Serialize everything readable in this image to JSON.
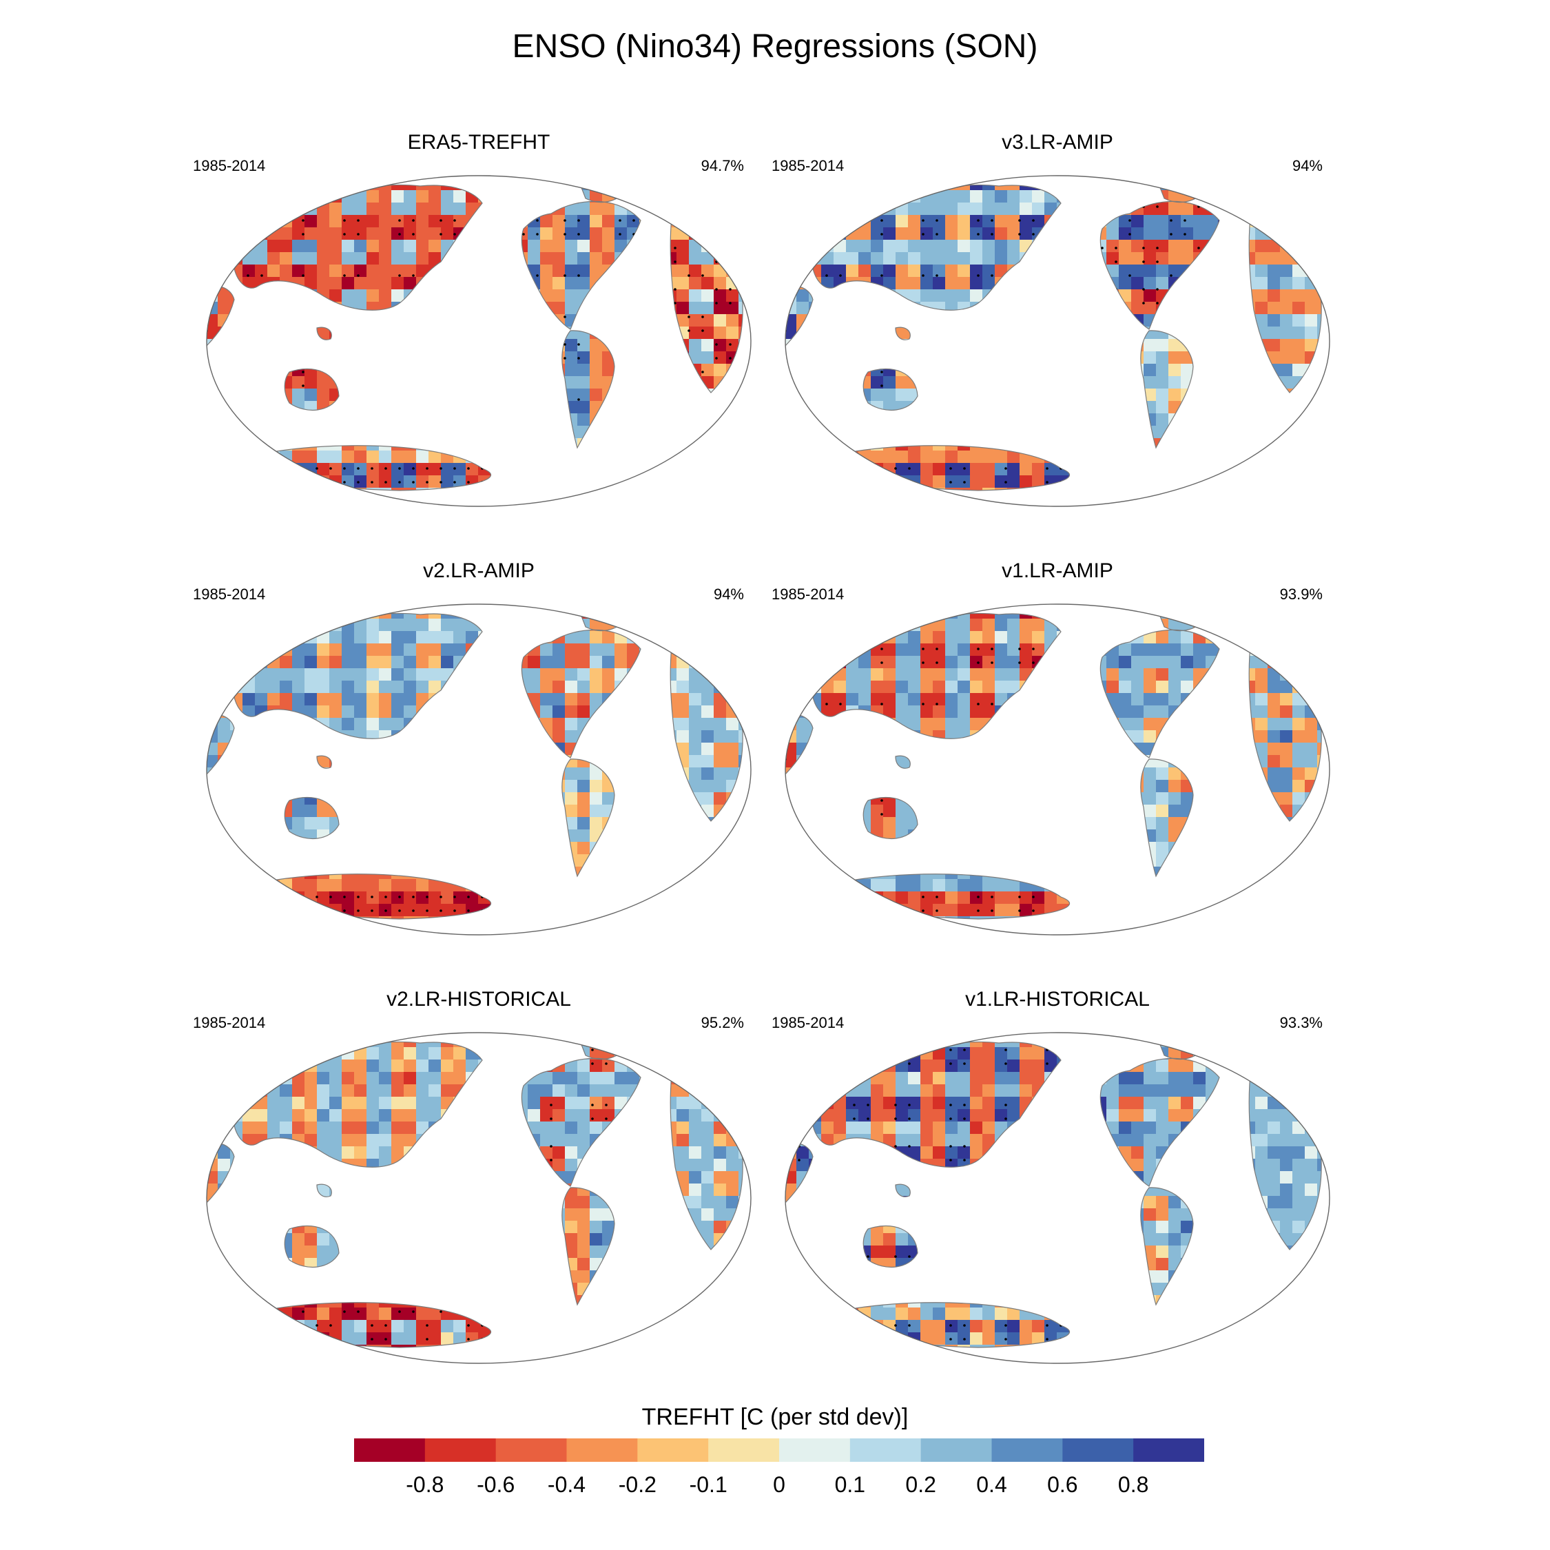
{
  "title": "ENSO (Nino34) Regressions (SON)",
  "panels": [
    {
      "title": "ERA5-TREFHT",
      "years": "1985-2014",
      "pct": "94.7%",
      "patches": [
        [
          -0.7,
          -0.5,
          0.3,
          -0.5
        ],
        [
          -0.3,
          0.6,
          -0.4,
          0.3
        ],
        [
          -0.4,
          0.4,
          -0.3,
          0.6
        ],
        [
          -0.6,
          -0.2,
          0.2,
          -0.8
        ],
        [
          0.7,
          -0.6,
          -0.4,
          0.1
        ]
      ]
    },
    {
      "title": "v3.LR-AMIP",
      "years": "1985-2014",
      "pct": "94%",
      "patches": [
        [
          0.8,
          -0.3,
          0.2,
          0.3
        ],
        [
          0.8,
          0.4,
          -0.4,
          -0.6
        ],
        [
          0.1,
          0.3,
          -0.2,
          0.2
        ],
        [
          0.3,
          0.2,
          -0.3,
          -0.4
        ],
        [
          -0.5,
          0.8,
          -0.3,
          -0.4
        ]
      ]
    },
    {
      "title": "v2.LR-AMIP",
      "years": "1985-2014",
      "pct": "94%",
      "patches": [
        [
          0.5,
          -0.3,
          0.3,
          0.2
        ],
        [
          0.4,
          -0.5,
          -0.3,
          0.2
        ],
        [
          0.2,
          -0.2,
          -0.1,
          0.3
        ],
        [
          0.2,
          -0.3,
          0.3,
          0.2
        ],
        [
          -0.7,
          -0.8,
          -0.5,
          -0.3
        ]
      ]
    },
    {
      "title": "v1.LR-AMIP",
      "years": "1985-2014",
      "pct": "93.9%",
      "patches": [
        [
          -0.7,
          0.4,
          -0.3,
          0.3
        ],
        [
          0.4,
          0.5,
          0.3,
          -0.3
        ],
        [
          0.3,
          0.2,
          -0.2,
          0.2
        ],
        [
          -0.3,
          0.2,
          0.4,
          -0.2
        ],
        [
          -0.7,
          -0.5,
          0.3,
          0.4
        ]
      ]
    },
    {
      "title": "v2.LR-HISTORICAL",
      "years": "1985-2014",
      "pct": "95.2%",
      "patches": [
        [
          -0.4,
          0.3,
          -0.2,
          0.3
        ],
        [
          0.3,
          0.4,
          -0.6,
          0.2
        ],
        [
          0.4,
          -0.3,
          0.2,
          -0.4
        ],
        [
          0.3,
          -0.3,
          0.2,
          0.3
        ],
        [
          0.2,
          -0.7,
          -0.8,
          -0.5
        ]
      ]
    },
    {
      "title": "v1.LR-HISTORICAL",
      "years": "1985-2014",
      "pct": "93.3%",
      "patches": [
        [
          -0.4,
          0.3,
          -0.5,
          0.8
        ],
        [
          0.5,
          0.4,
          -0.3,
          0.2
        ],
        [
          0.4,
          0.2,
          0.3,
          -0.3
        ],
        [
          0.3,
          0.2,
          0.4,
          0.3
        ],
        [
          -0.3,
          0.7,
          0.3,
          -0.2
        ]
      ]
    }
  ],
  "colorbar": {
    "title": "TREFHT [C (per std dev)]",
    "colors": [
      "#a50026",
      "#d73027",
      "#e9603f",
      "#f69353",
      "#fcc374",
      "#f8e3a6",
      "#e3f1ee",
      "#b6daea",
      "#89bad6",
      "#5b8dc1",
      "#3c61aa",
      "#313695"
    ],
    "labels": [
      "-0.8",
      "-0.6",
      "-0.4",
      "-0.2",
      "-0.1",
      "0",
      "0.1",
      "0.2",
      "0.4",
      "0.6",
      "0.8"
    ]
  }
}
